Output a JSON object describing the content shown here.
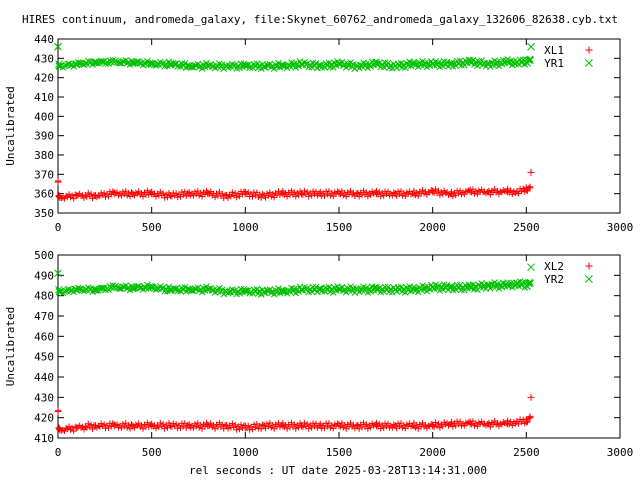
{
  "title": "HIRES continuum, andromeda_galaxy, file:Skynet_60762_andromeda_galaxy_132606_82638.cyb.txt",
  "xlabel": "rel seconds : UT date 2025-03-28T13:14:31.000",
  "colors": {
    "series1": "#ff0000",
    "series2": "#00c000",
    "axis": "#000000"
  },
  "chart_data": [
    {
      "type": "scatter",
      "ylabel": "Uncalibrated",
      "xlim": [
        0,
        3000
      ],
      "ylim": [
        350,
        440
      ],
      "xticks": [
        0,
        500,
        1000,
        1500,
        2000,
        2500,
        3000
      ],
      "yticks": [
        350,
        360,
        370,
        380,
        390,
        400,
        410,
        420,
        430,
        440
      ],
      "grid": false,
      "legend_position": "top-right",
      "series": [
        {
          "name": "XL1",
          "marker": "plus",
          "color": "#ff0000",
          "x": [
            0,
            5,
            10,
            100,
            200,
            300,
            400,
            500,
            600,
            700,
            800,
            900,
            1000,
            1100,
            1200,
            1300,
            1400,
            1500,
            1600,
            1700,
            1800,
            1900,
            2000,
            2100,
            2200,
            2300,
            2400,
            2450,
            2500,
            2520,
            2525
          ],
          "y": [
            366,
            359,
            358,
            359,
            359,
            360,
            360,
            360,
            359,
            360,
            360,
            359,
            360,
            359,
            360,
            360,
            360,
            360,
            360,
            360,
            360,
            360,
            361,
            360,
            361,
            361,
            361,
            361,
            362,
            363,
            371
          ]
        },
        {
          "name": "YR1",
          "marker": "cross",
          "color": "#00c000",
          "x": [
            0,
            5,
            10,
            100,
            200,
            300,
            400,
            500,
            600,
            700,
            800,
            900,
            1000,
            1100,
            1200,
            1300,
            1400,
            1500,
            1600,
            1700,
            1800,
            1900,
            2000,
            2100,
            2200,
            2300,
            2400,
            2450,
            2500,
            2520,
            2525
          ],
          "y": [
            436,
            427,
            426,
            427,
            428,
            428,
            428,
            427,
            427,
            426,
            426,
            426,
            426,
            426,
            426,
            427,
            426,
            427,
            426,
            427,
            426,
            427,
            427,
            427,
            428,
            427,
            428,
            428,
            428,
            429,
            436
          ]
        }
      ]
    },
    {
      "type": "scatter",
      "ylabel": "Uncalibrated",
      "xlim": [
        0,
        3000
      ],
      "ylim": [
        410,
        500
      ],
      "xticks": [
        0,
        500,
        1000,
        1500,
        2000,
        2500,
        3000
      ],
      "yticks": [
        410,
        420,
        430,
        440,
        450,
        460,
        470,
        480,
        490,
        500
      ],
      "grid": false,
      "legend_position": "top-right",
      "series": [
        {
          "name": "XL2",
          "marker": "plus",
          "color": "#ff0000",
          "x": [
            0,
            5,
            10,
            100,
            200,
            300,
            400,
            500,
            600,
            700,
            800,
            900,
            1000,
            1100,
            1200,
            1300,
            1400,
            1500,
            1600,
            1700,
            1800,
            1900,
            2000,
            2100,
            2200,
            2300,
            2400,
            2450,
            2500,
            2520,
            2525
          ],
          "y": [
            423,
            415,
            414,
            415,
            416,
            416,
            416,
            416,
            416,
            416,
            416,
            416,
            415,
            416,
            416,
            416,
            416,
            416,
            416,
            416,
            416,
            416,
            416,
            417,
            417,
            417,
            417,
            418,
            418,
            420,
            430
          ]
        },
        {
          "name": "YR2",
          "marker": "cross",
          "color": "#00c000",
          "x": [
            0,
            5,
            10,
            100,
            200,
            300,
            400,
            500,
            600,
            700,
            800,
            900,
            1000,
            1100,
            1200,
            1300,
            1400,
            1500,
            1600,
            1700,
            1800,
            1900,
            2000,
            2100,
            2200,
            2300,
            2400,
            2450,
            2500,
            2520,
            2525
          ],
          "y": [
            491,
            483,
            482,
            483,
            483,
            484,
            484,
            484,
            483,
            483,
            483,
            482,
            482,
            482,
            482,
            483,
            483,
            483,
            483,
            483,
            483,
            483,
            484,
            484,
            484,
            485,
            485,
            486,
            485,
            486,
            494
          ]
        }
      ]
    }
  ]
}
